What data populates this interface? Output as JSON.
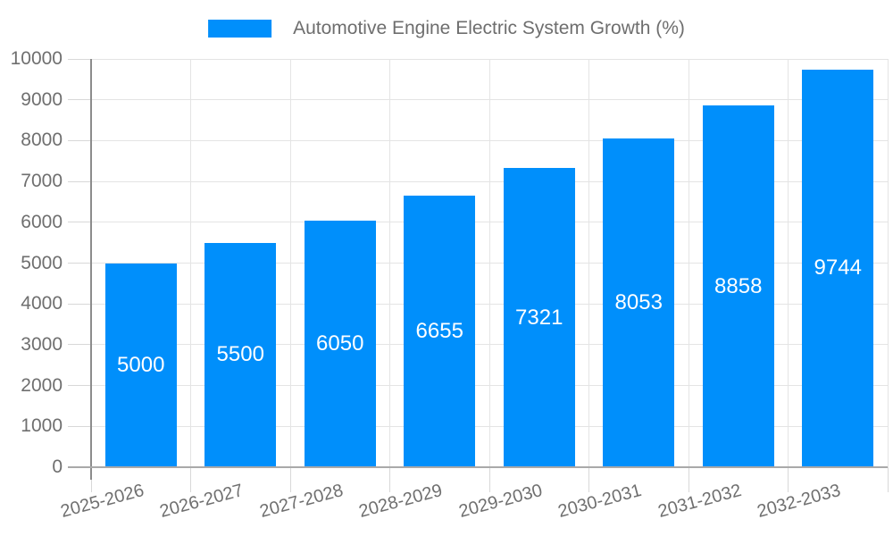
{
  "chart_data": {
    "type": "bar",
    "title": "Automotive Engine Electric System Growth (%)",
    "categories": [
      "2025-2026",
      "2026-2027",
      "2027-2028",
      "2028-2029",
      "2029-2030",
      "2030-2031",
      "2031-2032",
      "2032-2033"
    ],
    "series": [
      {
        "name": "Automotive Engine Electric System Growth (%)",
        "values": [
          5000,
          5500,
          6050,
          6655,
          7321,
          8053,
          8858,
          9744
        ]
      }
    ],
    "bar_value_labels": [
      "5000",
      "5500",
      "6050",
      "6655",
      "7321",
      "8053",
      "8858",
      "9744"
    ],
    "ytick_labels": [
      "0",
      "1000",
      "2000",
      "3000",
      "4000",
      "5000",
      "6000",
      "7000",
      "8000",
      "9000",
      "10000"
    ],
    "ylim": [
      0,
      10000
    ],
    "ytick_step": 1000,
    "xlabel": "",
    "ylabel": "",
    "grid": true,
    "legend_position": "top",
    "x_label_rotation_deg": -15,
    "colors": {
      "bar": "#008FFB",
      "bar_value_label": "#ffffff",
      "axis_text": "#6f6f6f",
      "legend_text": "#6e6e6e",
      "grid_line": "#e4e4e4",
      "tick_line": "#d8d8d8",
      "x_axis_line": "#a9a9a9",
      "y_axis_line": "#8c8c8c",
      "background": "#ffffff"
    }
  }
}
